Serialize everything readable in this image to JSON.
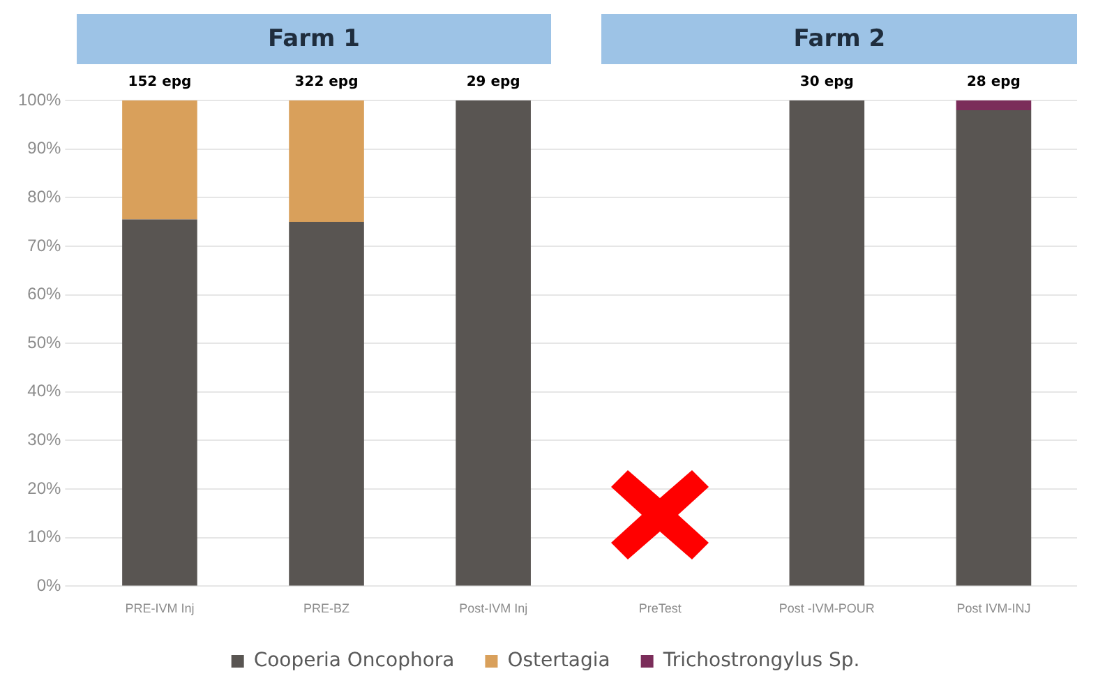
{
  "chart_data": {
    "type": "bar",
    "stacked": true,
    "categories": [
      "PRE-IVM Inj",
      "PRE-BZ",
      "Post-IVM Inj",
      "PreTest",
      "Post -IVM-POUR",
      "Post IVM-INJ"
    ],
    "series": [
      {
        "name": "Cooperia Oncophora",
        "color": "#595552",
        "values": [
          75.5,
          75,
          100,
          null,
          100,
          98
        ]
      },
      {
        "name": "Ostertagia",
        "color": "#d9a05b",
        "values": [
          24.5,
          25,
          0,
          null,
          0,
          0
        ]
      },
      {
        "name": "Trichostrongylus Sp.",
        "color": "#7b2d5a",
        "values": [
          0,
          0,
          0,
          null,
          0,
          2
        ]
      }
    ],
    "annotations": [
      "Farm 1",
      "Farm 2",
      {
        "text": "152 epg",
        "x": "PRE-IVM Inj",
        "y": 100
      },
      {
        "text": "322 epg",
        "x": "PRE-BZ",
        "y": 100
      },
      {
        "text": "29 epg",
        "x": "Post-IVM Inj",
        "y": 100
      },
      {
        "text": "30 epg",
        "x": "Post -IVM-POUR",
        "y": 100
      },
      {
        "text": "28 epg",
        "x": "Post IVM-INJ",
        "y": 100
      }
    ],
    "ylim": [
      0,
      100
    ],
    "yticks": [
      {
        "value": 0,
        "label": "0%"
      },
      {
        "value": 10,
        "label": "10%"
      },
      {
        "value": 20,
        "label": "20%"
      },
      {
        "value": 30,
        "label": "30%"
      },
      {
        "value": 40,
        "label": "40%"
      },
      {
        "value": 50,
        "label": "50%"
      },
      {
        "value": 60,
        "label": "60%"
      },
      {
        "value": 70,
        "label": "70%"
      },
      {
        "value": 80,
        "label": "80%"
      },
      {
        "value": 90,
        "label": "90%"
      },
      {
        "value": 100,
        "label": "100%"
      }
    ],
    "grid": "y",
    "legend": "bottom"
  }
}
